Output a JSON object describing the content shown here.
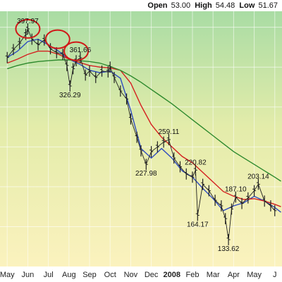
{
  "header": {
    "open_label": "Open",
    "open_value": "53.00",
    "high_label": "High",
    "high_value": "54.48",
    "low_label": "Low",
    "low_value": "51.67"
  },
  "chart_data": {
    "type": "line",
    "title": "",
    "xlabel": "",
    "ylabel": "",
    "grid": true,
    "background": "gradient green-top to yellow-bottom",
    "x_ticks": [
      "May",
      "Jun",
      "Jul",
      "Aug",
      "Sep",
      "Oct",
      "Nov",
      "Dec",
      "2008",
      "Feb",
      "Mar",
      "Apr",
      "May",
      "J"
    ],
    "x_ticks_bold": [
      "2008"
    ],
    "annotations": [
      {
        "label": "397.97",
        "month_index": 1.0,
        "value": 397.97,
        "side": "above"
      },
      {
        "label": "361.66",
        "month_index": 3.55,
        "value": 361.66,
        "side": "above"
      },
      {
        "label": "326.29",
        "month_index": 3.05,
        "value": 326.29,
        "side": "below"
      },
      {
        "label": "259.11",
        "month_index": 7.85,
        "value": 259.11,
        "side": "above"
      },
      {
        "label": "227.98",
        "month_index": 6.75,
        "value": 227.98,
        "side": "below"
      },
      {
        "label": "220.82",
        "month_index": 9.15,
        "value": 220.82,
        "side": "above"
      },
      {
        "label": "164.17",
        "month_index": 9.25,
        "value": 164.17,
        "side": "below"
      },
      {
        "label": "187.10",
        "month_index": 11.1,
        "value": 187.1,
        "side": "above"
      },
      {
        "label": "203.14",
        "month_index": 12.2,
        "value": 203.14,
        "side": "above"
      },
      {
        "label": "133.62",
        "month_index": 10.75,
        "value": 133.62,
        "side": "below"
      }
    ],
    "circled_highs": [
      {
        "month_index": 1.0,
        "value": 397.97
      },
      {
        "month_index": 2.45,
        "value": 385
      },
      {
        "month_index": 3.35,
        "value": 370
      }
    ],
    "series": [
      {
        "name": "",
        "style": "price-bars",
        "color": "#202020",
        "x": [
          0.0,
          0.3,
          0.6,
          0.9,
          1.0,
          1.2,
          1.5,
          1.8,
          2.1,
          2.4,
          2.7,
          2.9,
          3.05,
          3.2,
          3.35,
          3.55,
          3.8,
          4.0,
          4.3,
          4.6,
          4.9,
          5.0,
          5.2,
          5.5,
          5.8,
          6.0,
          6.3,
          6.5,
          6.75,
          7.0,
          7.3,
          7.6,
          7.85,
          8.1,
          8.4,
          8.7,
          9.0,
          9.15,
          9.25,
          9.5,
          9.8,
          10.1,
          10.4,
          10.6,
          10.75,
          10.9,
          11.1,
          11.4,
          11.7,
          12.0,
          12.2,
          12.5,
          12.8,
          13.0
        ],
        "values": [
          362,
          372,
          380,
          391,
          397.97,
          385,
          378,
          384,
          373,
          368,
          366,
          352,
          326.29,
          348,
          358,
          361.66,
          340,
          345,
          337,
          345,
          344,
          350,
          337,
          320,
          310,
          285,
          262,
          245,
          227.98,
          244,
          250,
          256,
          259.11,
          236,
          225,
          216,
          212,
          220.82,
          164.17,
          203,
          195,
          183,
          176,
          160,
          133.62,
          172,
          187.1,
          179,
          186,
          195,
          203.14,
          182,
          176,
          170
        ]
      },
      {
        "name": "",
        "style": "line",
        "color": "#2e4bbf",
        "x": [
          0.0,
          0.5,
          1.0,
          1.5,
          2.0,
          2.5,
          3.0,
          3.5,
          4.0,
          4.5,
          5.0,
          5.5,
          6.0,
          6.5,
          7.0,
          7.5,
          8.0,
          8.5,
          9.0,
          9.5,
          10.0,
          10.5,
          11.0,
          11.5,
          12.0,
          12.5,
          13.0,
          13.3
        ],
        "values": [
          362,
          370,
          382,
          385,
          378,
          370,
          360,
          354,
          346,
          343,
          345,
          336,
          296,
          248,
          236,
          248,
          236,
          220,
          212,
          198,
          185,
          170,
          176,
          180,
          188,
          182,
          174,
          168
        ]
      },
      {
        "name": "",
        "style": "line",
        "color": "#d42020",
        "x": [
          0.0,
          0.5,
          1.0,
          1.5,
          2.0,
          2.5,
          3.0,
          3.5,
          4.0,
          4.5,
          5.0,
          5.5,
          6.0,
          6.5,
          7.0,
          7.5,
          8.0,
          8.5,
          9.0,
          9.5,
          10.0,
          10.5,
          11.0,
          11.5,
          12.0,
          12.5,
          13.0,
          13.3
        ],
        "values": [
          355,
          360,
          366,
          370,
          370,
          366,
          360,
          356,
          352,
          350,
          349,
          346,
          330,
          302,
          278,
          262,
          250,
          238,
          230,
          218,
          206,
          194,
          188,
          184,
          185,
          182,
          178,
          175
        ]
      },
      {
        "name": "",
        "style": "line",
        "color": "#2e8a2e",
        "x": [
          0.0,
          0.5,
          1.0,
          1.5,
          2.0,
          2.5,
          3.0,
          3.5,
          4.0,
          4.5,
          5.0,
          5.5,
          6.0,
          6.5,
          7.0,
          7.5,
          8.0,
          8.5,
          9.0,
          9.5,
          10.0,
          10.5,
          11.0,
          11.5,
          12.0,
          12.5,
          13.0,
          13.3
        ],
        "values": [
          348,
          352,
          355,
          357,
          358,
          359,
          359,
          358,
          357,
          355,
          351,
          346,
          339,
          331,
          322,
          313,
          304,
          294,
          284,
          274,
          264,
          254,
          244,
          236,
          228,
          220,
          212,
          207
        ]
      }
    ],
    "ylim": [
      100,
      420
    ],
    "xlim": [
      -0.35,
      13.35
    ]
  }
}
